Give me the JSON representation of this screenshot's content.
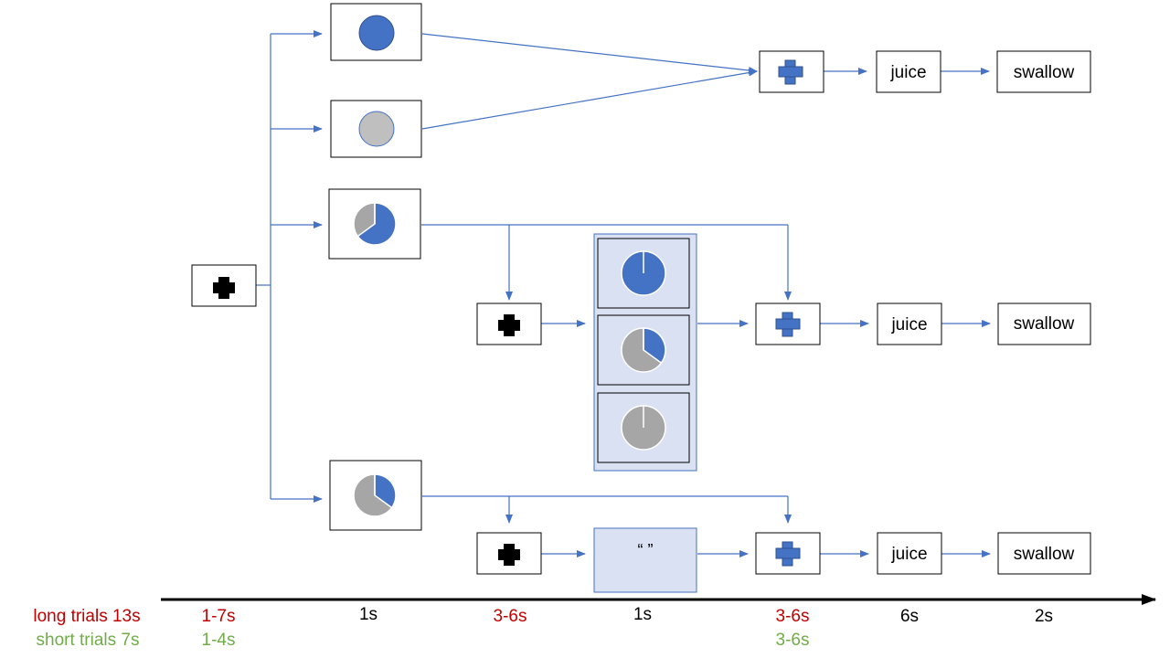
{
  "colors": {
    "blue": "#4472C4",
    "gray": "#BFBFBF",
    "pie_gray": "#A6A6A6",
    "panel": "#D9E1F2",
    "red": "#C00000",
    "green": "#70AD47",
    "black": "#000000"
  },
  "icons": {
    "fixation": "cross-icon",
    "fixation_blue": "blue-cross-icon",
    "circle_blue": "blue-circle-icon",
    "circle_gray": "gray-circle-icon",
    "pie": "pie-chart-icon"
  },
  "stimuli": {
    "blue_circle": "full-blue",
    "gray_circle": "full-gray",
    "pie_high": {
      "blue_fraction": 0.65
    },
    "pie_low": {
      "blue_fraction": 0.35
    },
    "panel_pies": [
      {
        "blue_fraction": 0.999
      },
      {
        "blue_fraction": 0.35
      },
      {
        "blue_fraction": 0.0
      }
    ]
  },
  "boxes": {
    "juice": "juice",
    "swallow": "swallow",
    "quote": "“ ”"
  },
  "legend": {
    "long": "long trials 13s",
    "short": "short trials 7s"
  },
  "timeline": {
    "long": [
      "1-7s",
      "3-6s",
      "3-6s"
    ],
    "short": [
      "1-4s",
      "3-6s"
    ],
    "black": [
      "1s",
      "1s",
      "6s",
      "2s"
    ]
  }
}
